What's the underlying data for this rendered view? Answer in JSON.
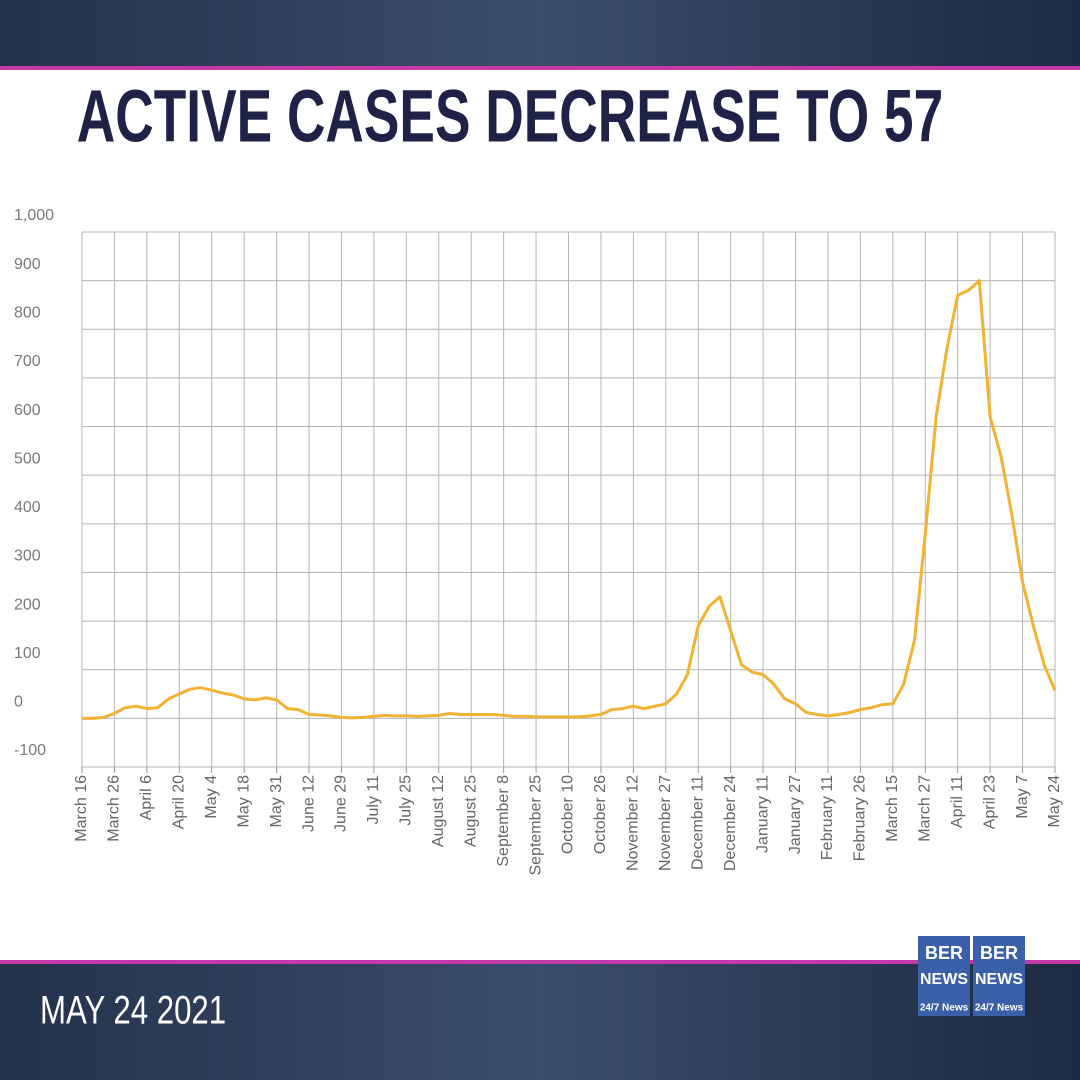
{
  "chart_data": {
    "type": "line",
    "title": "ACTIVE CASES DECREASE TO 57",
    "date_label": "MAY 24 2021",
    "logo": {
      "top": "BER",
      "middle": "NEWS",
      "bottom": "24/7 News"
    },
    "categories": [
      "March 16",
      null,
      null,
      "March 26",
      null,
      null,
      "April 6",
      null,
      null,
      "April 20",
      null,
      null,
      "May 4",
      null,
      null,
      "May 18",
      null,
      null,
      "May 31",
      null,
      null,
      "June 12",
      null,
      null,
      "June 29",
      null,
      null,
      "July 11",
      null,
      null,
      "July 25",
      null,
      null,
      "August 12",
      null,
      null,
      "August 25",
      null,
      null,
      "September 8",
      null,
      null,
      "September 25",
      null,
      null,
      "October 10",
      null,
      null,
      "October 26",
      null,
      null,
      "November 12",
      null,
      null,
      "November 27",
      null,
      null,
      "December 11",
      null,
      null,
      "December 24",
      null,
      null,
      "January 11",
      null,
      null,
      "January 27",
      null,
      null,
      "February 11",
      null,
      null,
      "February 26",
      null,
      null,
      "March 15",
      null,
      null,
      "March 27",
      null,
      null,
      "April 11",
      null,
      null,
      "April 23",
      null,
      null,
      "May 7",
      null,
      null,
      "May 24"
    ],
    "series": [
      {
        "name": "Active cases",
        "color": "#f2b233",
        "values": [
          0,
          0,
          2,
          10,
          22,
          25,
          20,
          22,
          40,
          50,
          60,
          63,
          58,
          52,
          48,
          40,
          38,
          42,
          38,
          20,
          18,
          8,
          7,
          5,
          2,
          1,
          2,
          4,
          6,
          5,
          5,
          4,
          5,
          6,
          10,
          8,
          8,
          8,
          8,
          6,
          4,
          4,
          3,
          3,
          3,
          3,
          3,
          5,
          8,
          18,
          20,
          25,
          20,
          25,
          30,
          50,
          90,
          190,
          230,
          250,
          180,
          110,
          95,
          90,
          70,
          40,
          30,
          12,
          8,
          5,
          8,
          12,
          18,
          22,
          28,
          30,
          70,
          160,
          380,
          620,
          760,
          870,
          880,
          900,
          620,
          540,
          420,
          280,
          190,
          110,
          57
        ]
      }
    ],
    "ylim": [
      -100,
      1000
    ],
    "yticks": [
      -100,
      0,
      100,
      200,
      300,
      400,
      500,
      600,
      700,
      800,
      900,
      {
        "value": 1000,
        "label": "1,000"
      }
    ],
    "grid": true
  }
}
